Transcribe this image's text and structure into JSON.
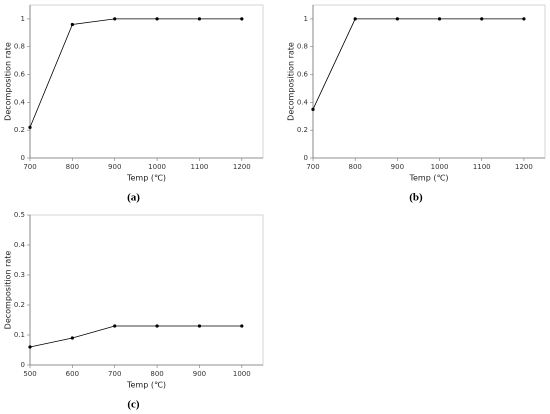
{
  "chart_data": [
    {
      "type": "line",
      "label": "(a)",
      "xlabel": "Temp (℃)",
      "ylabel": "Decomposition rate",
      "x": [
        700,
        800,
        900,
        1000,
        1100,
        1200
      ],
      "series": [
        {
          "color": "#000000",
          "values": [
            0.22,
            0.96,
            1,
            1,
            1,
            1
          ]
        }
      ],
      "xlim": [
        700,
        1250
      ],
      "xticks": [
        700,
        800,
        900,
        1000,
        1100,
        1200
      ],
      "ylim": [
        0,
        1.1
      ],
      "yticks": [
        0,
        0.2,
        0.4,
        0.6,
        0.8,
        1
      ]
    },
    {
      "type": "line",
      "label": "(b)",
      "xlabel": "Temp (℃)",
      "ylabel": "Decomposition rate",
      "x": [
        700,
        800,
        900,
        1000,
        1100,
        1200
      ],
      "series": [
        {
          "color": "#000000",
          "values": [
            0.35,
            1,
            1,
            1,
            1,
            1
          ]
        }
      ],
      "xlim": [
        700,
        1250
      ],
      "xticks": [
        700,
        800,
        900,
        1000,
        1100,
        1200
      ],
      "ylim": [
        0,
        1.1
      ],
      "yticks": [
        0,
        0.2,
        0.4,
        0.6,
        0.8,
        1
      ]
    },
    {
      "type": "line",
      "label": "(c)",
      "xlabel": "Temp (℃)",
      "ylabel": "Decomposition rate",
      "x": [
        500,
        600,
        700,
        800,
        900,
        1000
      ],
      "series": [
        {
          "color": "#000000",
          "values": [
            0.06,
            0.09,
            0.13,
            0.13,
            0.13,
            0.13
          ]
        }
      ],
      "xlim": [
        500,
        1050
      ],
      "xticks": [
        500,
        600,
        700,
        800,
        900,
        1000
      ],
      "ylim": [
        0,
        0.5
      ],
      "yticks": [
        0,
        0.1,
        0.2,
        0.3,
        0.4,
        0.5
      ]
    }
  ]
}
